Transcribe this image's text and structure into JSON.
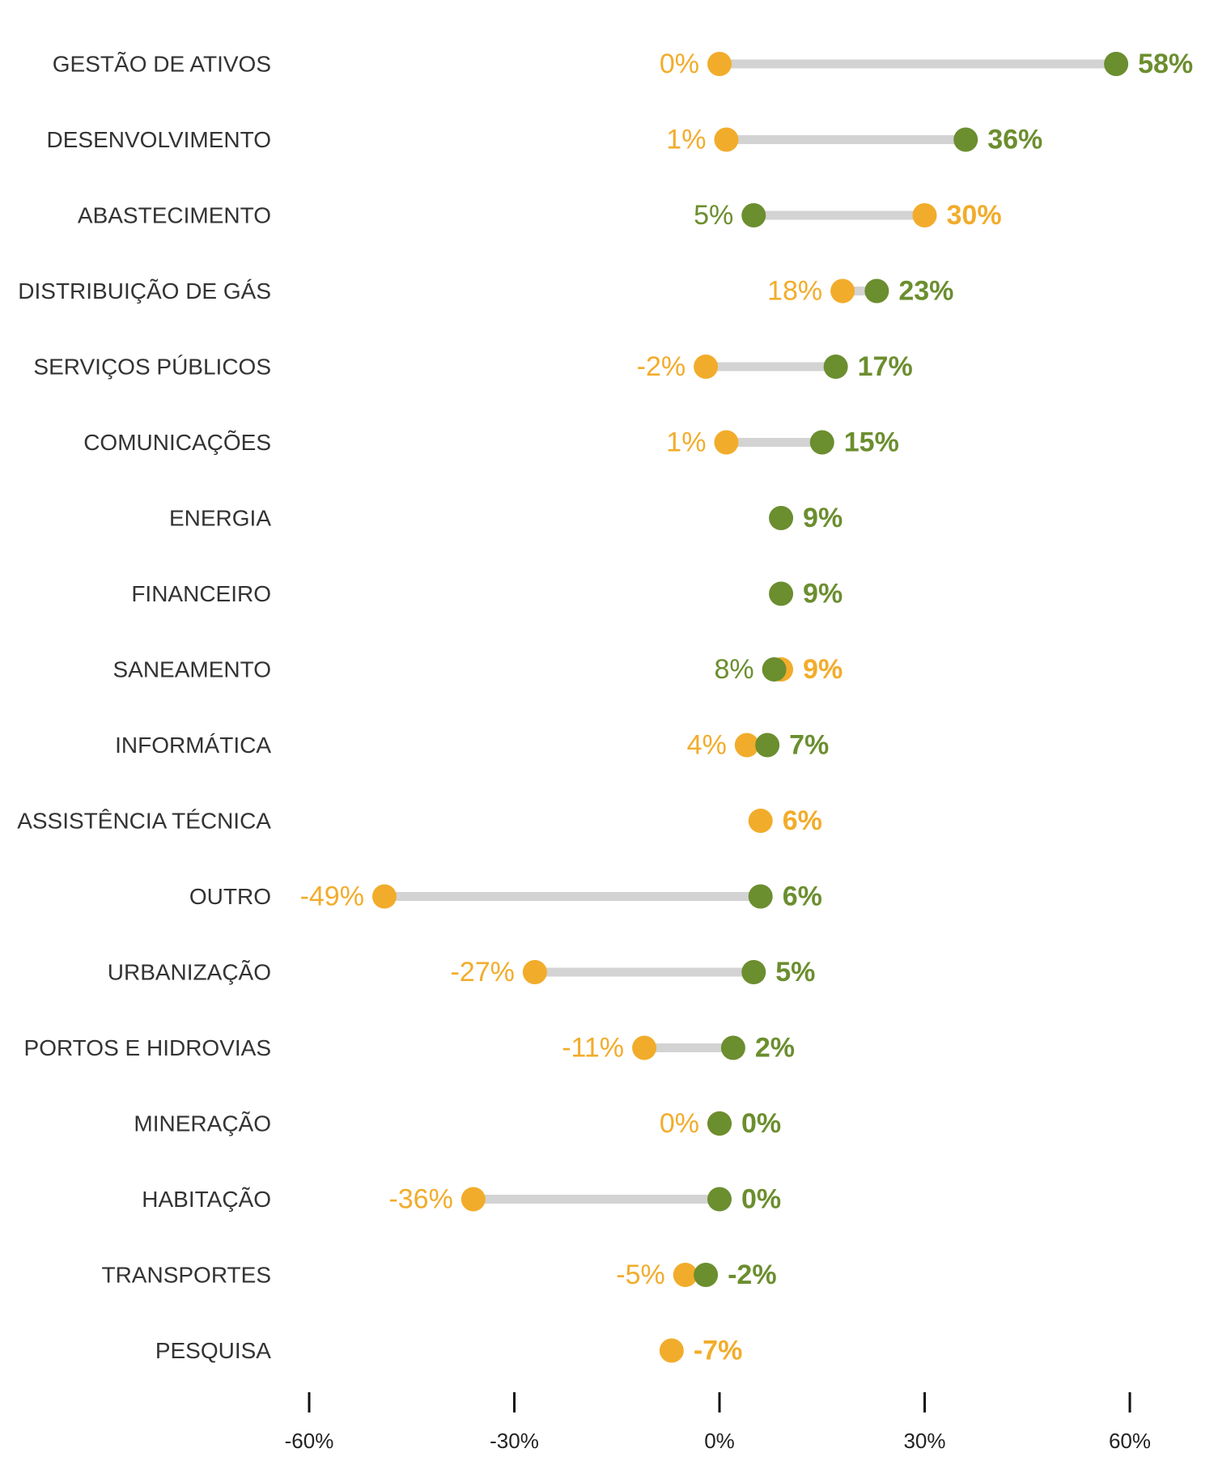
{
  "chart_data": {
    "type": "dumbbell",
    "categories": [
      "GESTÃO DE ATIVOS",
      "DESENVOLVIMENTO",
      "ABASTECIMENTO",
      "DISTRIBUIÇÃO DE GÁS",
      "SERVIÇOS PÚBLICOS",
      "COMUNICAÇÕES",
      "ENERGIA",
      "FINANCEIRO",
      "SANEAMENTO",
      "INFORMÁTICA",
      "ASSISTÊNCIA TÉCNICA",
      "OUTRO",
      "URBANIZAÇÃO",
      "PORTOS E HIDROVIAS",
      "MINERAÇÃO",
      "HABITAÇÃO",
      "TRANSPORTES",
      "PESQUISA"
    ],
    "series": [
      {
        "color": "#F2AC2B",
        "values": [
          0,
          1,
          30,
          18,
          -2,
          1,
          null,
          null,
          9,
          4,
          6,
          -49,
          -27,
          -11,
          0,
          -36,
          -5,
          -7
        ],
        "labels": [
          "0%",
          "1%",
          "30%",
          "18%",
          "-2%",
          "1%",
          null,
          null,
          "9%",
          "4%",
          "6%",
          "-49%",
          "-27%",
          "-11%",
          "0%",
          "-36%",
          "-5%",
          "-7%"
        ]
      },
      {
        "color": "#6B8E2F",
        "values": [
          58,
          36,
          5,
          23,
          17,
          15,
          9,
          9,
          8,
          7,
          null,
          6,
          5,
          2,
          0,
          0,
          -2,
          null
        ],
        "labels": [
          "58%",
          "36%",
          "5%",
          "23%",
          "17%",
          "15%",
          "9%",
          "9%",
          "8%",
          "7%",
          null,
          "6%",
          "5%",
          "2%",
          "0%",
          "0%",
          "-2%",
          null
        ]
      }
    ],
    "xlim": [
      -60,
      60
    ],
    "xticks": [
      -60,
      -30,
      0,
      30,
      60
    ],
    "xtick_labels": [
      "-60%",
      "-30%",
      "0%",
      "30%",
      "60%"
    ],
    "connector_color": "#D3D3D3",
    "grid": false,
    "legend": "none"
  }
}
